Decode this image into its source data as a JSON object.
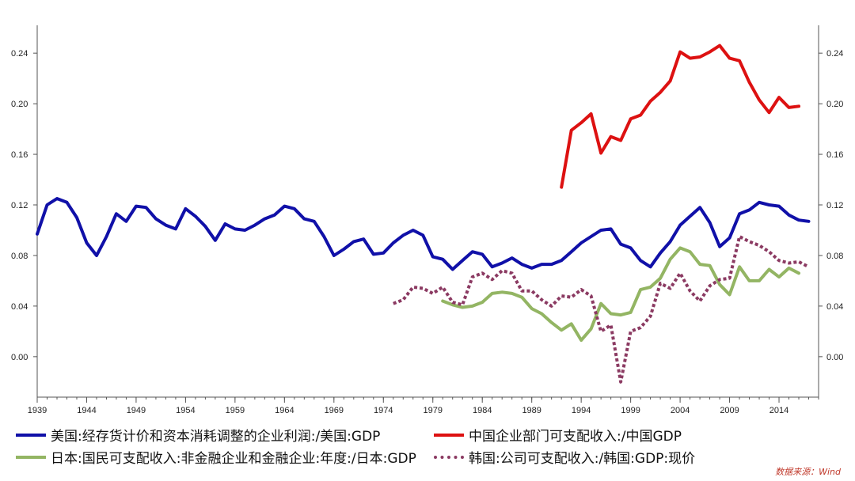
{
  "chart_data": {
    "type": "line",
    "title": "",
    "xlabel": "",
    "ylabel": "",
    "xlim": [
      1939,
      2018
    ],
    "ylim": [
      -0.032,
      0.262
    ],
    "x_ticks": [
      "1939",
      "1944",
      "1949",
      "1954",
      "1959",
      "1964",
      "1969",
      "1974",
      "1979",
      "1984",
      "1989",
      "1994",
      "1999",
      "2004",
      "2009",
      "2014"
    ],
    "y_ticks": [
      "0.00",
      "0.04",
      "0.08",
      "0.12",
      "0.16",
      "0.20",
      "0.24"
    ],
    "grid": false,
    "legend_position": "bottom",
    "series": [
      {
        "name": "美国:经存货计价和资本消耗调整的企业利润:/美国:GDP",
        "color": "#1010a8",
        "style": "solid",
        "x": [
          1939,
          1940,
          1941,
          1942,
          1943,
          1944,
          1945,
          1946,
          1947,
          1948,
          1949,
          1950,
          1951,
          1952,
          1953,
          1954,
          1955,
          1956,
          1957,
          1958,
          1959,
          1960,
          1961,
          1962,
          1963,
          1964,
          1965,
          1966,
          1967,
          1968,
          1969,
          1970,
          1971,
          1972,
          1973,
          1974,
          1975,
          1976,
          1977,
          1978,
          1979,
          1980,
          1981,
          1982,
          1983,
          1984,
          1985,
          1986,
          1987,
          1988,
          1989,
          1990,
          1991,
          1992,
          1993,
          1994,
          1995,
          1996,
          1997,
          1998,
          1999,
          2000,
          2001,
          2002,
          2003,
          2004,
          2005,
          2006,
          2007,
          2008,
          2009,
          2010,
          2011,
          2012,
          2013,
          2014,
          2015,
          2016,
          2017
        ],
        "values": [
          0.097,
          0.12,
          0.125,
          0.122,
          0.11,
          0.09,
          0.08,
          0.095,
          0.113,
          0.107,
          0.119,
          0.118,
          0.109,
          0.104,
          0.101,
          0.117,
          0.111,
          0.103,
          0.092,
          0.105,
          0.101,
          0.1,
          0.104,
          0.109,
          0.112,
          0.119,
          0.117,
          0.109,
          0.107,
          0.095,
          0.08,
          0.085,
          0.091,
          0.093,
          0.081,
          0.082,
          0.09,
          0.096,
          0.1,
          0.096,
          0.079,
          0.077,
          0.069,
          0.076,
          0.083,
          0.081,
          0.071,
          0.074,
          0.078,
          0.073,
          0.07,
          0.073,
          0.073,
          0.076,
          0.083,
          0.09,
          0.095,
          0.1,
          0.101,
          0.089,
          0.086,
          0.076,
          0.071,
          0.082,
          0.091,
          0.104,
          0.111,
          0.118,
          0.106,
          0.087,
          0.094,
          0.113,
          0.116,
          0.122,
          0.12,
          0.119,
          0.112,
          0.108,
          0.107
        ]
      },
      {
        "name": "中国企业部门可支配收入:/中国GDP",
        "color": "#dd1111",
        "style": "solid",
        "x": [
          1992,
          1993,
          1994,
          1995,
          1996,
          1997,
          1998,
          1999,
          2000,
          2001,
          2002,
          2003,
          2004,
          2005,
          2006,
          2007,
          2008,
          2009,
          2010,
          2011,
          2012,
          2013,
          2014,
          2015,
          2016
        ],
        "values": [
          0.134,
          0.179,
          0.185,
          0.192,
          0.161,
          0.174,
          0.171,
          0.188,
          0.191,
          0.202,
          0.209,
          0.218,
          0.241,
          0.236,
          0.237,
          0.241,
          0.246,
          0.236,
          0.234,
          0.217,
          0.203,
          0.193,
          0.205,
          0.197,
          0.198
        ]
      },
      {
        "name": "日本:国民可支配收入:非金融企业和金融企业:年度:/日本:GDP",
        "color": "#93b563",
        "style": "solid",
        "x": [
          1980,
          1981,
          1982,
          1983,
          1984,
          1985,
          1986,
          1987,
          1988,
          1989,
          1990,
          1991,
          1992,
          1993,
          1994,
          1995,
          1996,
          1997,
          1998,
          1999,
          2000,
          2001,
          2002,
          2003,
          2004,
          2005,
          2006,
          2007,
          2008,
          2009,
          2010,
          2011,
          2012,
          2013,
          2014,
          2015,
          2016
        ],
        "values": [
          0.044,
          0.041,
          0.039,
          0.04,
          0.043,
          0.05,
          0.051,
          0.05,
          0.047,
          0.038,
          0.034,
          0.027,
          0.021,
          0.026,
          0.013,
          0.022,
          0.042,
          0.034,
          0.033,
          0.035,
          0.053,
          0.055,
          0.062,
          0.077,
          0.086,
          0.083,
          0.073,
          0.072,
          0.057,
          0.049,
          0.071,
          0.06,
          0.06,
          0.069,
          0.063,
          0.07,
          0.066
        ]
      },
      {
        "name": "韩国:公司可支配收入:/韩国:GDP:现价",
        "color": "#8b3a62",
        "style": "dotted",
        "x": [
          1975,
          1976,
          1977,
          1978,
          1979,
          1980,
          1981,
          1982,
          1983,
          1984,
          1985,
          1986,
          1987,
          1988,
          1989,
          1990,
          1991,
          1992,
          1993,
          1994,
          1995,
          1996,
          1997,
          1998,
          1999,
          2000,
          2001,
          2002,
          2003,
          2004,
          2005,
          2006,
          2007,
          2008,
          2009,
          2010,
          2011,
          2012,
          2013,
          2014,
          2015,
          2016,
          2017
        ],
        "values": [
          0.042,
          0.045,
          0.055,
          0.054,
          0.05,
          0.055,
          0.043,
          0.041,
          0.063,
          0.066,
          0.061,
          0.068,
          0.066,
          0.052,
          0.052,
          0.045,
          0.04,
          0.048,
          0.047,
          0.053,
          0.048,
          0.02,
          0.025,
          -0.02,
          0.02,
          0.023,
          0.032,
          0.058,
          0.054,
          0.066,
          0.052,
          0.044,
          0.056,
          0.061,
          0.062,
          0.095,
          0.091,
          0.088,
          0.083,
          0.076,
          0.074,
          0.075,
          0.071
        ]
      }
    ]
  },
  "source_text": "数据来源：Wind"
}
